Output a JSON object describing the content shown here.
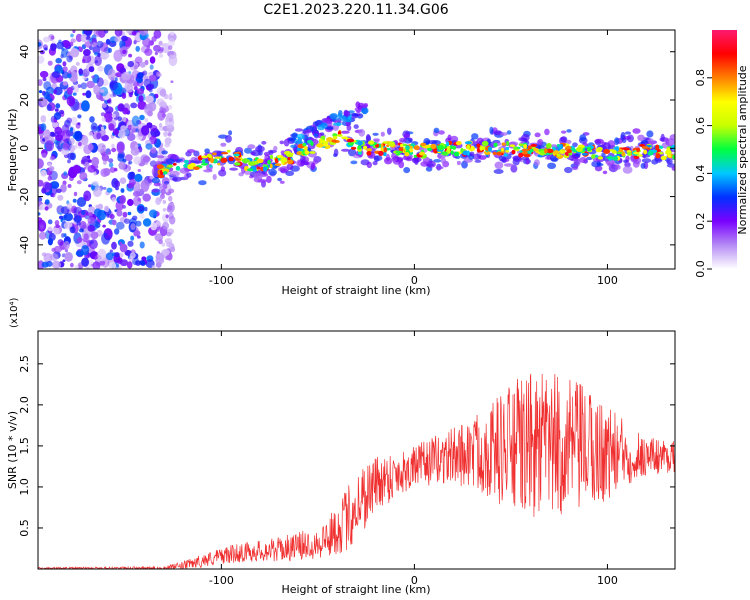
{
  "title": "C2E1.2023.220.11.34.G06",
  "chart_data": [
    {
      "type": "heatmap",
      "title": "C2E1.2023.220.11.34.G06",
      "xlabel": "Height of straight line (km)",
      "ylabel": "Frequency (Hz)",
      "xlim": [
        -195,
        135
      ],
      "ylim": [
        -50,
        49
      ],
      "xticks": [
        -100,
        0,
        100
      ],
      "xtick_labels": [
        "-100",
        "0",
        "100"
      ],
      "yticks": [
        -40,
        -20,
        0,
        20,
        40
      ],
      "ytick_labels": [
        "-40",
        "-20",
        "0",
        "20",
        "40"
      ],
      "ridge_track": {
        "x": [
          -135,
          -120,
          -105,
          -95,
          -85,
          -75,
          -65,
          -55,
          -45,
          -35,
          -30,
          -25,
          -15,
          0,
          20,
          40,
          60,
          80,
          100,
          120,
          135
        ],
        "freq": [
          -10,
          -8,
          -5,
          -3,
          -7,
          -6,
          -4,
          0,
          3,
          5,
          1,
          0,
          0,
          -1,
          0,
          0,
          -1,
          -1,
          -2,
          -1,
          -2
        ]
      },
      "noise_region_x": [
        -195,
        -125
      ],
      "colorbar": {
        "label": "Normalized spectral amplitude",
        "range": [
          0.0,
          1.0
        ],
        "ticks": [
          0.0,
          0.2,
          0.4,
          0.6,
          0.8
        ],
        "tick_labels": [
          "0.0",
          "0.2",
          "0.4",
          "0.6",
          "0.8"
        ],
        "colors": [
          "#ffffff",
          "#b58cf5",
          "#7a00ff",
          "#0030ff",
          "#00c8ff",
          "#00ff40",
          "#c8ff00",
          "#ffff00",
          "#ff8000",
          "#ff0000",
          "#ff1a70"
        ]
      }
    },
    {
      "type": "line",
      "xlabel": "Height of straight line (km)",
      "ylabel": "SNR (10 * v/v)",
      "y_multiplier": "(x10⁴)",
      "xlim": [
        -195,
        135
      ],
      "ylim": [
        0,
        2.9
      ],
      "xticks": [
        -100,
        0,
        100
      ],
      "xtick_labels": [
        "-100",
        "0",
        "100"
      ],
      "yticks": [
        0.5,
        1.0,
        1.5,
        2.0,
        2.5
      ],
      "ytick_labels": [
        "0.5",
        "1.0",
        "1.5",
        "2.0",
        "2.5"
      ],
      "color": "#f03030",
      "envelope": {
        "x": [
          -195,
          -130,
          -120,
          -110,
          -100,
          -90,
          -80,
          -70,
          -60,
          -50,
          -45,
          -40,
          -35,
          -30,
          -25,
          -20,
          -10,
          0,
          10,
          20,
          30,
          40,
          50,
          60,
          70,
          80,
          90,
          100,
          110,
          120,
          135
        ],
        "mean": [
          0.01,
          0.01,
          0.04,
          0.1,
          0.16,
          0.2,
          0.22,
          0.24,
          0.28,
          0.32,
          0.38,
          0.48,
          0.6,
          0.78,
          0.92,
          1.05,
          1.15,
          1.25,
          1.32,
          1.38,
          1.42,
          1.45,
          1.48,
          1.5,
          1.5,
          1.48,
          1.45,
          1.42,
          1.4,
          1.38,
          1.38
        ],
        "spread": [
          0.01,
          0.02,
          0.05,
          0.08,
          0.1,
          0.12,
          0.13,
          0.15,
          0.17,
          0.2,
          0.25,
          0.3,
          0.4,
          0.45,
          0.42,
          0.35,
          0.3,
          0.25,
          0.3,
          0.35,
          0.45,
          0.6,
          0.8,
          0.9,
          0.9,
          0.85,
          0.75,
          0.6,
          0.4,
          0.25,
          0.2
        ]
      }
    }
  ]
}
